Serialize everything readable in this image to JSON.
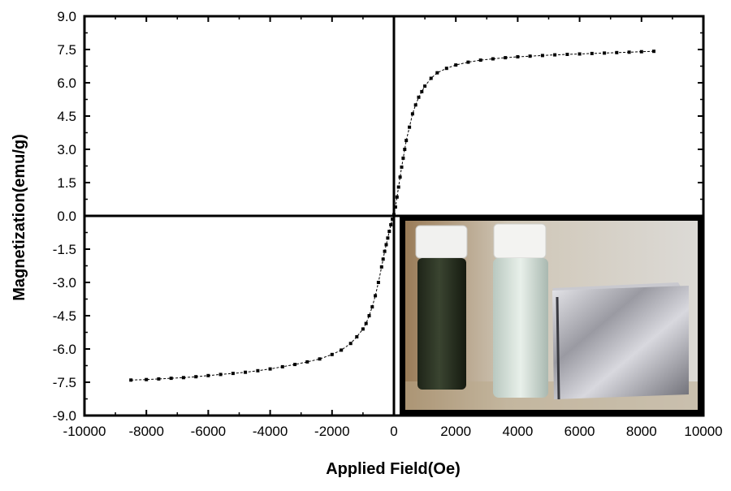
{
  "chart_data": {
    "type": "scatter",
    "title": "",
    "xlabel": "Applied Field(Oe)",
    "ylabel": "Magnetization(emu/g)",
    "xlim": [
      -10000,
      10000
    ],
    "ylim": [
      -9.0,
      9.0
    ],
    "x_ticks": [
      "-10000",
      "-8000",
      "-6000",
      "-4000",
      "-2000",
      "0",
      "2000",
      "4000",
      "6000",
      "8000",
      "10000"
    ],
    "y_ticks": [
      "9.0",
      "7.5",
      "6.0",
      "4.5",
      "3.0",
      "1.5",
      "0.0",
      "-1.5",
      "-3.0",
      "-4.5",
      "-6.0",
      "-7.5",
      "-9.0"
    ],
    "grid": false,
    "legend": "none",
    "marker": "square",
    "line_style": "dashed",
    "series": [
      {
        "x": [
          -8500,
          -8000,
          -7600,
          -7200,
          -6800,
          -6400,
          -6000,
          -5600,
          -5200,
          -4800,
          -4400,
          -4000,
          -3600,
          -3200,
          -2800,
          -2400,
          -2000,
          -1700,
          -1400,
          -1200,
          -1000,
          -900,
          -800,
          -700,
          -600,
          -500,
          -400,
          -350,
          -300,
          -250,
          -200,
          -150,
          -100,
          -50,
          0,
          50,
          100,
          150,
          200,
          250,
          300,
          350,
          400,
          500,
          600,
          700,
          800,
          900,
          1000,
          1200,
          1400,
          1700,
          2000,
          2400,
          2800,
          3200,
          3600,
          4000,
          4400,
          4800,
          5200,
          5600,
          6000,
          6400,
          6800,
          7200,
          7600,
          8000,
          8400
        ],
        "y": [
          -7.4,
          -7.38,
          -7.35,
          -7.32,
          -7.29,
          -7.25,
          -7.2,
          -7.15,
          -7.1,
          -7.05,
          -6.98,
          -6.9,
          -6.8,
          -6.7,
          -6.58,
          -6.45,
          -6.25,
          -6.05,
          -5.75,
          -5.45,
          -5.1,
          -4.85,
          -4.5,
          -4.1,
          -3.6,
          -3.0,
          -2.3,
          -1.95,
          -1.6,
          -1.3,
          -1.0,
          -0.7,
          -0.4,
          -0.15,
          0.05,
          0.4,
          0.85,
          1.3,
          1.75,
          2.2,
          2.6,
          3.0,
          3.4,
          4.0,
          4.6,
          5.0,
          5.35,
          5.6,
          5.85,
          6.2,
          6.45,
          6.65,
          6.8,
          6.93,
          7.02,
          7.08,
          7.13,
          7.17,
          7.2,
          7.23,
          7.26,
          7.28,
          7.3,
          7.32,
          7.34,
          7.36,
          7.38,
          7.4,
          7.42
        ]
      }
    ],
    "inset": {
      "type": "photo",
      "position": "bottom-right",
      "description_hidden": true
    }
  }
}
